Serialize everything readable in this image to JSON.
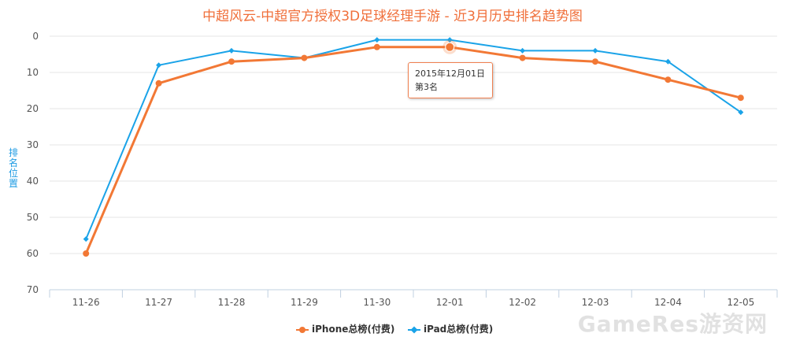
{
  "chart_data": {
    "type": "line",
    "title": "中超风云-中超官方授权3D足球经理手游 - 近3月历史排名趋势图",
    "ylabel": "排名位置",
    "xlabel": "",
    "categories": [
      "11-26",
      "11-27",
      "11-28",
      "11-29",
      "11-30",
      "12-01",
      "12-02",
      "12-03",
      "12-04",
      "12-05"
    ],
    "y_ticks": [
      "0",
      "10",
      "20",
      "30",
      "40",
      "50",
      "60",
      "70"
    ],
    "ylim": [
      0,
      70
    ],
    "y_reversed": true,
    "grid": true,
    "legend_position": "bottom-center",
    "series": [
      {
        "name": "iPhone总榜(付费)",
        "color": "#f27835",
        "marker": "circle",
        "values": [
          60,
          13,
          7,
          6,
          3,
          3,
          6,
          7,
          12,
          17
        ]
      },
      {
        "name": "iPad总榜(付费)",
        "color": "#1aa3e8",
        "marker": "diamond",
        "values": [
          56,
          8,
          4,
          6,
          1,
          1,
          4,
          4,
          7,
          21
        ]
      }
    ],
    "tooltip": {
      "category": "12-01",
      "series": 0,
      "date": "2015年12月01日",
      "value_text": "第3名"
    }
  },
  "watermark": "GameRes游资网"
}
